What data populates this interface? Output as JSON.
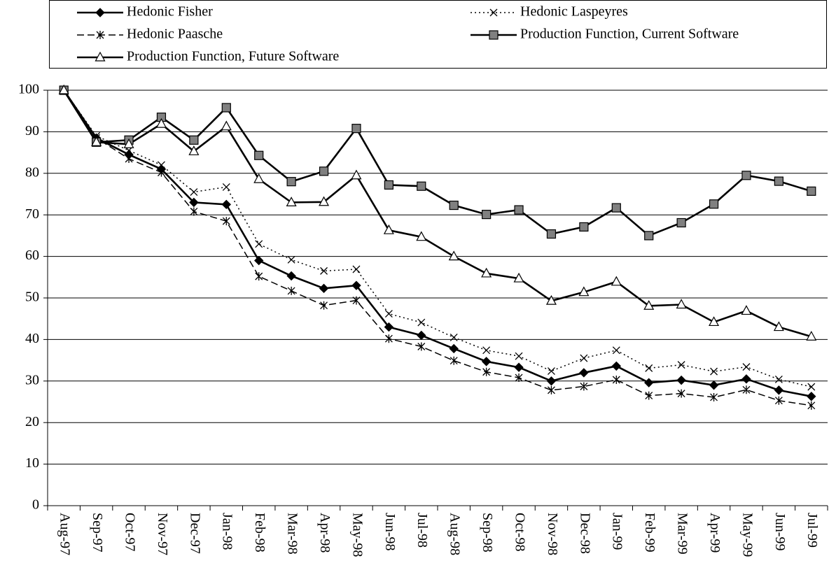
{
  "chart_data": {
    "type": "line",
    "categories": [
      "Aug-97",
      "Sep-97",
      "Oct-97",
      "Nov-97",
      "Dec-97",
      "Jan-98",
      "Feb-98",
      "Mar-98",
      "Apr-98",
      "May-98",
      "Jun-98",
      "Jul-98",
      "Aug-98",
      "Sep-98",
      "Oct-98",
      "Nov-98",
      "Dec-98",
      "Jan-99",
      "Feb-99",
      "Mar-99",
      "Apr-99",
      "May-99",
      "Jun-99",
      "Jul-99"
    ],
    "series": [
      {
        "name": "Hedonic Fisher",
        "color": "#000000",
        "marker": "diamond",
        "marker_fill": "#000000",
        "dash": "solid",
        "values": [
          100,
          88.5,
          84.5,
          81,
          73,
          72.5,
          59,
          55.3,
          52.3,
          53,
          43,
          41,
          37.8,
          34.7,
          33.3,
          30,
          32,
          33.6,
          29.6,
          30.2,
          29,
          30.5,
          27.8,
          26.3
        ]
      },
      {
        "name": "Hedonic Laspeyres",
        "color": "#000000",
        "marker": "x",
        "marker_fill": "#000000",
        "dash": "dotted",
        "values": [
          100,
          89,
          85.5,
          82,
          75.5,
          76.7,
          63,
          59.2,
          56.5,
          56.9,
          46.2,
          44.1,
          40.5,
          37.4,
          36,
          32.4,
          35.5,
          37.4,
          33.1,
          33.9,
          32.3,
          33.4,
          30.4,
          28.6
        ]
      },
      {
        "name": "Hedonic Paasche",
        "color": "#000000",
        "marker": "asterisk",
        "marker_fill": "#000000",
        "dash": "dashed",
        "values": [
          100,
          88.5,
          83.5,
          80.2,
          70.8,
          68.5,
          55.2,
          51.7,
          48.2,
          49.4,
          40.2,
          38.3,
          34.9,
          32.2,
          30.8,
          27.8,
          28.7,
          30.3,
          26.5,
          27,
          26.1,
          27.9,
          25.3,
          24.1
        ]
      },
      {
        "name": "Production Function, Current Software",
        "color": "#000000",
        "marker": "square",
        "marker_fill": "#808080",
        "dash": "solid",
        "values": [
          100,
          87.5,
          88,
          93.5,
          88,
          95.8,
          84.3,
          78,
          80.5,
          90.8,
          77.2,
          76.9,
          72.3,
          70.1,
          71.2,
          65.4,
          67.1,
          71.7,
          65,
          68.1,
          72.6,
          79.5,
          78.1,
          75.7
        ]
      },
      {
        "name": "Production Function, Future Software",
        "color": "#000000",
        "marker": "triangle",
        "marker_fill": "#ffffff",
        "dash": "solid",
        "values": [
          100,
          87.5,
          87,
          91.9,
          85.3,
          91.3,
          78.6,
          73,
          73.1,
          79.5,
          66.3,
          64.7,
          60,
          55.9,
          54.7,
          49.3,
          51.4,
          53.9,
          48.1,
          48.4,
          44.2,
          46.9,
          43,
          40.7
        ]
      }
    ],
    "ylim": [
      0,
      100
    ],
    "yticks": [
      0,
      10,
      20,
      30,
      40,
      50,
      60,
      70,
      80,
      90,
      100
    ],
    "grid": true,
    "legend": "top"
  }
}
